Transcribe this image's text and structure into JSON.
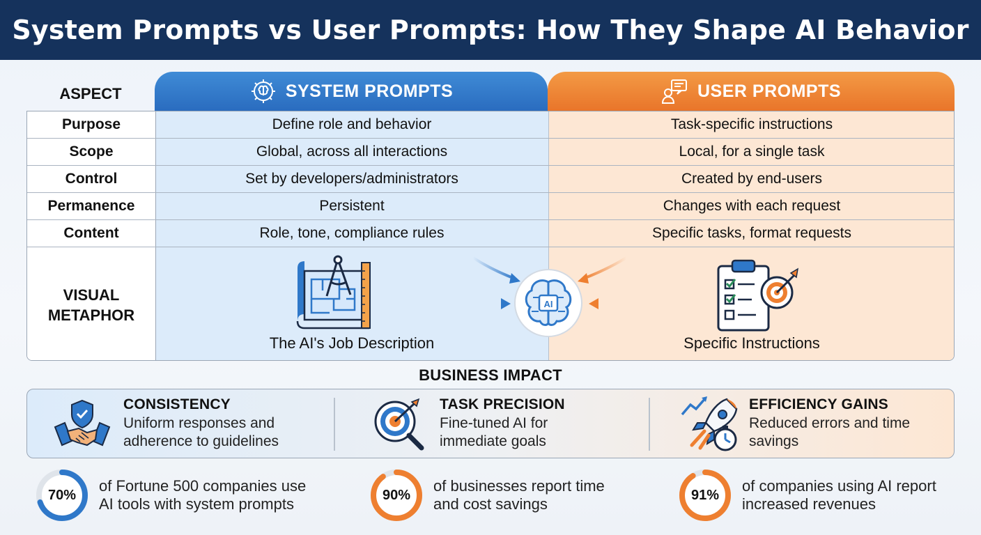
{
  "title": "System Prompts vs User Prompts: How They Shape AI Behavior",
  "colors": {
    "header_bg": "#15325c",
    "system_blue": "#2f78c9",
    "user_orange": "#ee7f30",
    "system_bg": "#dcebfa",
    "user_bg": "#fde7d4"
  },
  "table": {
    "aspect_header": "ASPECT",
    "system_header": "SYSTEM PROMPTS",
    "user_header": "USER PROMPTS",
    "system_icon": "gear-brain-icon",
    "user_icon": "user-screen-icon",
    "rows": [
      {
        "aspect": "Purpose",
        "system": "Define role and behavior",
        "user": "Task-specific instructions"
      },
      {
        "aspect": "Scope",
        "system": "Global, across all interactions",
        "user": "Local, for a single task"
      },
      {
        "aspect": "Control",
        "system": "Set by developers/administrators",
        "user": "Created by end-users"
      },
      {
        "aspect": "Permanence",
        "system": "Persistent",
        "user": "Changes with each request"
      },
      {
        "aspect": "Content",
        "system": "Role, tone, compliance rules",
        "user": "Specific tasks, format requests"
      }
    ],
    "metaphor": {
      "label_line1": "VISUAL",
      "label_line2": "METAPHOR",
      "system_caption": "The AI's Job Description",
      "user_caption": "Specific Instructions",
      "system_icon": "blueprint-icon",
      "user_icon": "clipboard-target-icon",
      "center_icon": "ai-brain-icon",
      "center_label": "AI"
    }
  },
  "impact": {
    "heading": "BUSINESS IMPACT",
    "items": [
      {
        "title": "CONSISTENCY",
        "line1": "Uniform responses and",
        "line2": "adherence to guidelines",
        "icon": "handshake-shield-icon"
      },
      {
        "title": "TASK PRECISION",
        "line1": "Fine-tuned AI for",
        "line2": "immediate goals",
        "icon": "target-magnifier-icon"
      },
      {
        "title": "EFFICIENCY GAINS",
        "line1": "Reduced errors and time",
        "line2": "savings",
        "icon": "rocket-stopwatch-icon"
      }
    ]
  },
  "stats": [
    {
      "value": "70%",
      "fraction": 0.7,
      "color": "#2f78c9",
      "line1": "of Fortune 500 companies use",
      "line2": "AI tools with system prompts"
    },
    {
      "value": "90%",
      "fraction": 0.9,
      "color": "#ee7f30",
      "line1": "of businesses report time",
      "line2": "and cost savings"
    },
    {
      "value": "91%",
      "fraction": 0.91,
      "color": "#ee7f30",
      "line1": "of companies using AI report",
      "line2": "increased revenues"
    }
  ]
}
